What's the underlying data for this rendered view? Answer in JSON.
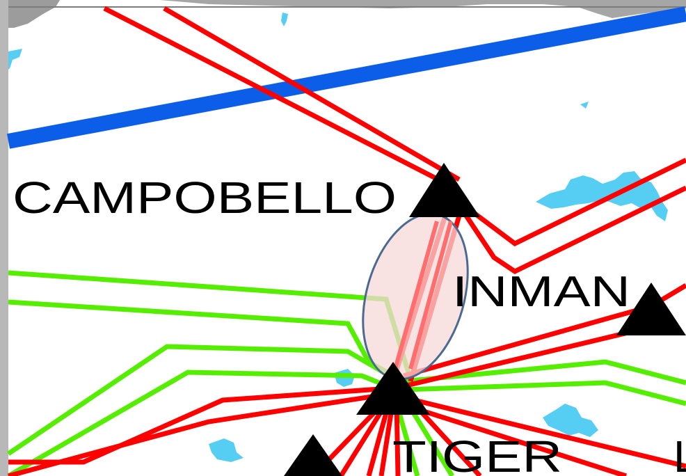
{
  "labels": {
    "campobello": "CAMPOBELLO",
    "inman": "INMAN",
    "tiger": "TIGER",
    "partial_right": "L"
  },
  "colors": {
    "background": "#ffffff",
    "border_left": "#b8b8b8",
    "top_land": "#9c9c9c",
    "water": "#56cdf2",
    "blue_line": "#0c5ee8",
    "red_line": "#ff0000",
    "green_line": "#55ee00",
    "substation": "#000000",
    "highlight_fill": "#f7d8d8",
    "highlight_stroke": "#4a6a92"
  },
  "legend_icons": {
    "substation": "triangle-substation-icon",
    "highlight": "highlight-ellipse-icon"
  }
}
